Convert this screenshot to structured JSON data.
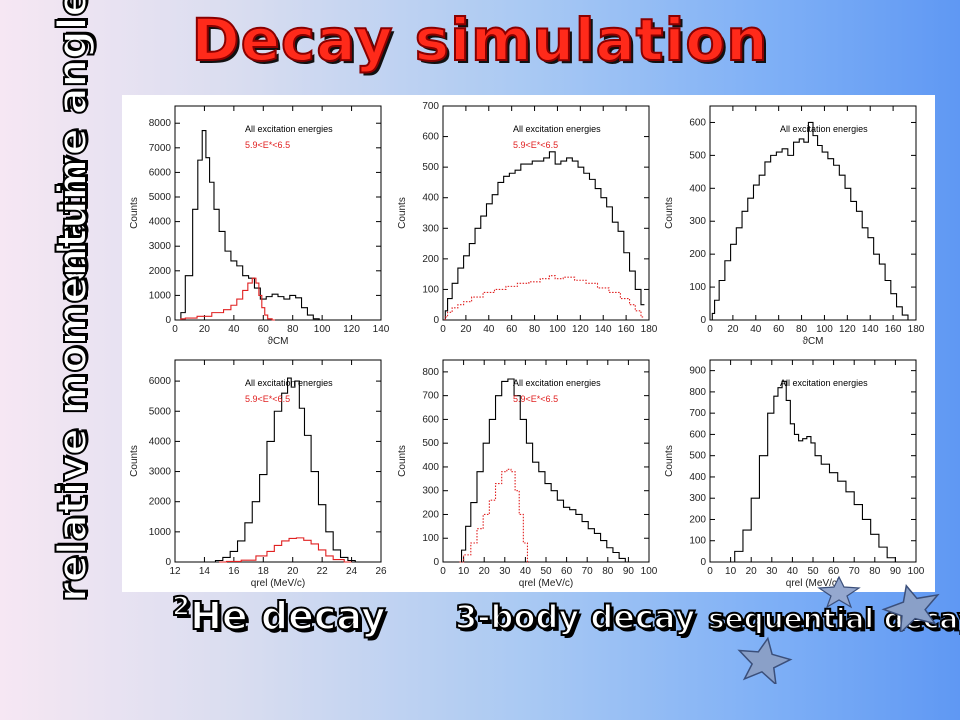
{
  "slide": {
    "title": "Decay simulation",
    "row_labels": [
      "relative angle",
      "relative momentum"
    ],
    "column_labels": {
      "he_prefix": "2",
      "he_text": "He decay",
      "three_body": "3-body decay",
      "sequential": "sequential decay"
    }
  },
  "colors": {
    "accent_title": "#ff2a1a",
    "all_energies": "#000000",
    "gated": "#e02020"
  },
  "chart_data": [
    {
      "type": "line",
      "panel": "2He relative angle",
      "ylabel": "Counts",
      "xlabel": "ϑCM",
      "xlim": [
        0,
        140
      ],
      "ylim": [
        0,
        8700
      ],
      "xticks": [
        0,
        20,
        40,
        60,
        80,
        100,
        120,
        140
      ],
      "yticks": [
        0,
        1000,
        2000,
        3000,
        4000,
        5000,
        6000,
        7000,
        8000
      ],
      "legend": [
        "All excitation energies",
        "5.9<E*<6.5"
      ],
      "series": [
        {
          "name": "All excitation energies",
          "x": [
            4,
            10,
            14,
            17,
            20,
            22,
            25,
            28,
            32,
            36,
            40,
            44,
            48,
            52,
            56,
            60,
            64,
            68,
            72,
            76,
            80,
            84,
            88,
            92,
            96,
            100
          ],
          "y": [
            300,
            1800,
            4500,
            6500,
            7700,
            6600,
            5600,
            4500,
            3600,
            2800,
            2400,
            2200,
            1800,
            1700,
            1300,
            850,
            950,
            1050,
            950,
            850,
            1000,
            900,
            500,
            200,
            50,
            0
          ]
        },
        {
          "name": "5.9<E*<6.5",
          "x": [
            4,
            10,
            20,
            30,
            36,
            40,
            44,
            48,
            51,
            54,
            56,
            58,
            60,
            62,
            64,
            68
          ],
          "y": [
            50,
            80,
            150,
            300,
            420,
            600,
            850,
            1200,
            1500,
            1700,
            1500,
            1000,
            500,
            200,
            50,
            0
          ]
        }
      ]
    },
    {
      "type": "line",
      "panel": "3-body relative angle",
      "ylabel": "Counts",
      "xlabel": "",
      "xlim": [
        0,
        180
      ],
      "ylim": [
        0,
        700
      ],
      "xticks": [
        0,
        20,
        40,
        60,
        80,
        100,
        120,
        140,
        160,
        180
      ],
      "yticks": [
        0,
        100,
        200,
        300,
        400,
        500,
        600,
        700
      ],
      "legend": [
        "All excitation energies",
        "5.9<E*<6.5"
      ],
      "series": [
        {
          "name": "All excitation energies",
          "x": [
            2,
            6,
            10,
            16,
            20,
            26,
            30,
            36,
            40,
            46,
            50,
            56,
            60,
            66,
            70,
            76,
            80,
            86,
            90,
            96,
            100,
            106,
            110,
            116,
            120,
            126,
            130,
            136,
            140,
            146,
            150,
            156,
            160,
            166,
            170,
            176
          ],
          "y": [
            30,
            70,
            120,
            170,
            210,
            250,
            300,
            340,
            380,
            410,
            450,
            470,
            480,
            490,
            510,
            510,
            520,
            520,
            530,
            550,
            510,
            520,
            530,
            520,
            500,
            480,
            460,
            430,
            400,
            370,
            320,
            290,
            220,
            160,
            100,
            50
          ]
        },
        {
          "name": "5.9<E*<6.5",
          "x": [
            2,
            6,
            10,
            16,
            20,
            30,
            40,
            50,
            60,
            70,
            80,
            90,
            96,
            100,
            110,
            120,
            130,
            140,
            150,
            160,
            166,
            170,
            176
          ],
          "y": [
            10,
            25,
            40,
            50,
            60,
            75,
            90,
            100,
            110,
            120,
            125,
            135,
            145,
            135,
            140,
            130,
            120,
            105,
            90,
            70,
            50,
            30,
            10
          ]
        }
      ]
    },
    {
      "type": "line",
      "panel": "sequential relative angle",
      "ylabel": "Counts",
      "xlabel": "ϑCM",
      "xlim": [
        0,
        180
      ],
      "ylim": [
        0,
        650
      ],
      "xticks": [
        0,
        20,
        40,
        60,
        80,
        100,
        120,
        140,
        160,
        180
      ],
      "yticks": [
        0,
        100,
        200,
        300,
        400,
        500,
        600
      ],
      "legend": [
        "All excitation energies"
      ],
      "series": [
        {
          "name": "All excitation energies",
          "x": [
            2,
            6,
            10,
            16,
            20,
            26,
            30,
            36,
            40,
            46,
            50,
            56,
            60,
            66,
            70,
            76,
            80,
            84,
            88,
            92,
            96,
            100,
            106,
            110,
            116,
            120,
            126,
            130,
            136,
            140,
            146,
            150,
            156,
            160,
            166,
            170,
            176
          ],
          "y": [
            20,
            60,
            120,
            180,
            230,
            280,
            330,
            370,
            410,
            440,
            480,
            500,
            510,
            520,
            500,
            540,
            550,
            540,
            600,
            560,
            530,
            510,
            490,
            470,
            440,
            400,
            360,
            330,
            280,
            250,
            200,
            170,
            120,
            80,
            40,
            15,
            0
          ]
        }
      ]
    },
    {
      "type": "line",
      "panel": "2He relative momentum",
      "ylabel": "Counts",
      "xlabel": "qrel (MeV/c)",
      "xlim": [
        12,
        26
      ],
      "ylim": [
        0,
        6700
      ],
      "xticks": [
        12,
        14,
        16,
        18,
        20,
        22,
        24,
        26
      ],
      "yticks": [
        0,
        1000,
        2000,
        3000,
        4000,
        5000,
        6000
      ],
      "legend": [
        "All excitation energies",
        "5.9<E*<6.5"
      ],
      "series": [
        {
          "name": "All excitation energies",
          "x": [
            14.5,
            15,
            15.5,
            16,
            16.5,
            17,
            17.5,
            18,
            18.5,
            19,
            19.5,
            19.8,
            20,
            20.3,
            20.6,
            21,
            21.5,
            22,
            22.5,
            23,
            23.5,
            24,
            24.5
          ],
          "y": [
            0,
            50,
            150,
            350,
            700,
            1300,
            2000,
            2900,
            4000,
            5000,
            5600,
            6100,
            5800,
            6000,
            5100,
            4200,
            3000,
            1900,
            1000,
            400,
            150,
            50,
            0
          ]
        },
        {
          "name": "5.9<E*<6.5",
          "x": [
            15,
            16,
            17,
            18,
            18.5,
            19,
            19.5,
            20,
            20.5,
            21,
            21.5,
            22,
            22.5,
            23,
            24
          ],
          "y": [
            0,
            20,
            60,
            200,
            350,
            550,
            700,
            780,
            800,
            720,
            600,
            400,
            200,
            80,
            0
          ]
        }
      ]
    },
    {
      "type": "line",
      "panel": "3-body relative momentum",
      "ylabel": "Counts",
      "xlabel": "qrel (MeV/c)",
      "xlim": [
        0,
        100
      ],
      "ylim": [
        0,
        850
      ],
      "xticks": [
        0,
        10,
        20,
        30,
        40,
        50,
        60,
        70,
        80,
        90,
        100
      ],
      "yticks": [
        0,
        100,
        200,
        300,
        400,
        500,
        600,
        700,
        800
      ],
      "legend": [
        "All excitation energies",
        "5.9<E*<6.5"
      ],
      "series": [
        {
          "name": "All excitation energies",
          "x": [
            8,
            10,
            12,
            15,
            18,
            21,
            24,
            27,
            30,
            33,
            36,
            39,
            42,
            45,
            48,
            51,
            54,
            57,
            60,
            63,
            66,
            69,
            72,
            75,
            78,
            81,
            84,
            87,
            90
          ],
          "y": [
            0,
            50,
            150,
            250,
            380,
            500,
            600,
            700,
            760,
            770,
            700,
            600,
            500,
            420,
            380,
            330,
            300,
            260,
            230,
            220,
            200,
            170,
            140,
            120,
            90,
            60,
            40,
            15,
            0
          ]
        },
        {
          "name": "5.9<E*<6.5",
          "x": [
            8,
            12,
            15,
            18,
            21,
            24,
            27,
            30,
            32,
            34,
            36,
            38,
            40,
            42
          ],
          "y": [
            0,
            30,
            80,
            140,
            200,
            260,
            330,
            380,
            390,
            380,
            300,
            200,
            80,
            0
          ]
        }
      ]
    },
    {
      "type": "line",
      "panel": "sequential relative momentum",
      "ylabel": "Counts",
      "xlabel": "qrel (MeV/c)",
      "xlim": [
        0,
        100
      ],
      "ylim": [
        0,
        950
      ],
      "xticks": [
        0,
        10,
        20,
        30,
        40,
        50,
        60,
        70,
        80,
        90,
        100
      ],
      "yticks": [
        0,
        100,
        200,
        300,
        400,
        500,
        600,
        700,
        800,
        900
      ],
      "legend": [
        "All excitation energies"
      ],
      "series": [
        {
          "name": "All excitation energies",
          "x": [
            10,
            14,
            18,
            22,
            26,
            30,
            32,
            34,
            36,
            38,
            40,
            42,
            44,
            46,
            48,
            50,
            52,
            56,
            60,
            64,
            68,
            72,
            76,
            80,
            84,
            88,
            92
          ],
          "y": [
            0,
            50,
            150,
            300,
            500,
            700,
            780,
            820,
            850,
            760,
            650,
            600,
            570,
            580,
            590,
            560,
            500,
            460,
            420,
            380,
            330,
            270,
            200,
            130,
            70,
            20,
            0
          ]
        }
      ]
    }
  ]
}
